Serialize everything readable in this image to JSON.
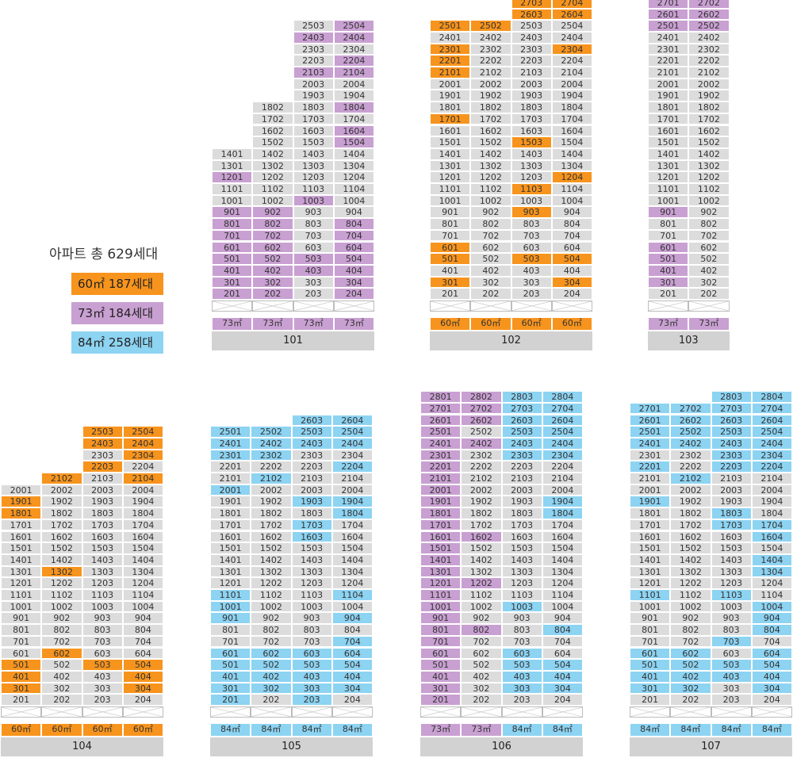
{
  "legend": {
    "title": "아파트 총 629세대",
    "items": [
      {
        "label": "60㎡ 187세대",
        "type": "o"
      },
      {
        "label": "73㎡ 184세대",
        "type": "p"
      },
      {
        "label": "84㎡ 258세대",
        "type": "b"
      }
    ]
  },
  "colors": {
    "g": "#dcdcdc",
    "o": "#f7941d",
    "p": "#c9a0d2",
    "b": "#8dd3f2",
    "label": "#d2d2d2"
  },
  "buildings": [
    {
      "name": "101",
      "lines": [
        {
          "type": "73㎡",
          "top": 14,
          "colors": {
            "12": "p",
            "9": "p",
            "8": "p",
            "7": "p",
            "6": "p",
            "5": "p",
            "4": "p",
            "3": "p",
            "2": "p"
          }
        },
        {
          "type": "73㎡",
          "top": 18,
          "colors": {
            "9": "p",
            "8": "p",
            "7": "p",
            "6": "p",
            "5": "p",
            "4": "p",
            "3": "p",
            "2": "p"
          }
        },
        {
          "type": "73㎡",
          "top": 25,
          "colors": {
            "24": "p",
            "21": "p",
            "10": "p",
            "5": "p",
            "4": "p"
          }
        },
        {
          "type": "73㎡",
          "top": 25,
          "colors": {
            "25": "p",
            "24": "p",
            "22": "p",
            "21": "p",
            "18": "p",
            "16": "p",
            "15": "p",
            "8": "p",
            "7": "p",
            "6": "p",
            "5": "p",
            "4": "p",
            "3": "p",
            "2": "p"
          }
        }
      ]
    },
    {
      "name": "102",
      "lines": [
        {
          "type": "60㎡",
          "top": 25,
          "colors": {
            "25": "o",
            "23": "o",
            "22": "o",
            "21": "o",
            "17": "o",
            "6": "o",
            "5": "o",
            "3": "o"
          }
        },
        {
          "type": "60㎡",
          "top": 25,
          "colors": {
            "25": "o"
          }
        },
        {
          "type": "60㎡",
          "top": 27,
          "colors": {
            "27": "o",
            "26": "o",
            "15": "o",
            "11": "o",
            "9": "o",
            "5": "o"
          }
        },
        {
          "type": "60㎡",
          "top": 27,
          "colors": {
            "27": "o",
            "26": "o",
            "23": "o",
            "12": "o",
            "5": "o",
            "3": "o"
          }
        }
      ]
    },
    {
      "name": "103",
      "lines": [
        {
          "type": "73㎡",
          "top": 27,
          "colors": {
            "27": "p",
            "26": "p",
            "25": "p",
            "9": "p",
            "6": "p",
            "5": "p",
            "4": "p",
            "3": "p"
          }
        },
        {
          "type": "73㎡",
          "top": 27,
          "colors": {
            "27": "p",
            "26": "p",
            "25": "p"
          }
        }
      ]
    },
    {
      "name": "104",
      "lines": [
        {
          "type": "60㎡",
          "top": 20,
          "colors": {
            "19": "o",
            "18": "o",
            "5": "o",
            "4": "o",
            "3": "o"
          }
        },
        {
          "type": "60㎡",
          "top": 21,
          "colors": {
            "21": "o",
            "13": "o",
            "6": "o"
          }
        },
        {
          "type": "60㎡",
          "top": 25,
          "colors": {
            "25": "o",
            "24": "o",
            "22": "o",
            "5": "o"
          }
        },
        {
          "type": "60㎡",
          "top": 25,
          "colors": {
            "25": "o",
            "24": "o",
            "23": "o",
            "21": "o",
            "5": "o",
            "4": "o",
            "3": "o"
          }
        }
      ]
    },
    {
      "name": "105",
      "lines": [
        {
          "type": "84㎡",
          "top": 25,
          "colors": {
            "25": "b",
            "24": "b",
            "23": "b",
            "20": "b",
            "11": "b",
            "10": "b",
            "9": "b",
            "6": "b",
            "5": "b",
            "4": "b",
            "3": "b",
            "2": "b"
          }
        },
        {
          "type": "84㎡",
          "top": 25,
          "colors": {
            "25": "b",
            "24": "b",
            "23": "b",
            "21": "b",
            "6": "b",
            "5": "b",
            "4": "b",
            "3": "b"
          }
        },
        {
          "type": "84㎡",
          "top": 26,
          "colors": {
            "26": "b",
            "25": "b",
            "24": "b",
            "19": "b",
            "17": "b",
            "16": "b",
            "6": "b",
            "5": "b",
            "4": "b",
            "3": "b",
            "2": "b"
          }
        },
        {
          "type": "84㎡",
          "top": 26,
          "colors": {
            "26": "b",
            "25": "b",
            "24": "b",
            "22": "b",
            "19": "b",
            "18": "b",
            "11": "b",
            "9": "b",
            "7": "b",
            "6": "b",
            "5": "b",
            "4": "b",
            "3": "b"
          }
        }
      ]
    },
    {
      "name": "106",
      "lines": [
        {
          "type": "73㎡",
          "top": 28,
          "colors": {
            "28": "p",
            "27": "p",
            "26": "p",
            "25": "p",
            "24": "p",
            "23": "p",
            "22": "p",
            "21": "p",
            "20": "p",
            "19": "p",
            "18": "p",
            "17": "p",
            "16": "p",
            "15": "p",
            "14": "p",
            "13": "p",
            "12": "p",
            "11": "p",
            "10": "p",
            "9": "p",
            "8": "p",
            "7": "p",
            "6": "p",
            "5": "p",
            "4": "p",
            "3": "p",
            "2": "p"
          }
        },
        {
          "type": "73㎡",
          "top": 28,
          "colors": {
            "28": "p",
            "27": "p",
            "26": "p",
            "24": "p",
            "16": "p",
            "12": "p",
            "8": "p"
          }
        },
        {
          "type": "84㎡",
          "top": 28,
          "colors": {
            "28": "b",
            "27": "b",
            "26": "b",
            "25": "b",
            "24": "b",
            "23": "b",
            "10": "b",
            "6": "b",
            "5": "b",
            "4": "b",
            "3": "b"
          }
        },
        {
          "type": "84㎡",
          "top": 28,
          "colors": {
            "28": "b",
            "27": "b",
            "26": "b",
            "25": "b",
            "24": "b",
            "23": "b",
            "19": "b",
            "18": "b",
            "8": "b",
            "5": "b",
            "4": "b",
            "3": "b"
          }
        }
      ]
    },
    {
      "name": "107",
      "lines": [
        {
          "type": "84㎡",
          "top": 27,
          "colors": {
            "27": "b",
            "26": "b",
            "25": "b",
            "24": "b",
            "22": "b",
            "19": "b",
            "11": "b",
            "6": "b",
            "5": "b",
            "4": "b",
            "3": "b"
          }
        },
        {
          "type": "84㎡",
          "top": 27,
          "colors": {
            "27": "b",
            "26": "b",
            "25": "b",
            "24": "b",
            "21": "b",
            "6": "b",
            "5": "b",
            "4": "b",
            "3": "b"
          }
        },
        {
          "type": "84㎡",
          "top": 28,
          "colors": {
            "28": "b",
            "27": "b",
            "26": "b",
            "25": "b",
            "24": "b",
            "23": "b",
            "22": "b",
            "18": "b",
            "17": "b",
            "11": "b",
            "7": "b",
            "5": "b",
            "4": "b"
          }
        },
        {
          "type": "84㎡",
          "top": 28,
          "colors": {
            "28": "b",
            "27": "b",
            "26": "b",
            "25": "b",
            "24": "b",
            "23": "b",
            "22": "b",
            "17": "b",
            "16": "b",
            "14": "b",
            "13": "b",
            "10": "b",
            "9": "b",
            "8": "b",
            "6": "b",
            "5": "b",
            "4": "b",
            "3": "b"
          }
        }
      ]
    }
  ]
}
